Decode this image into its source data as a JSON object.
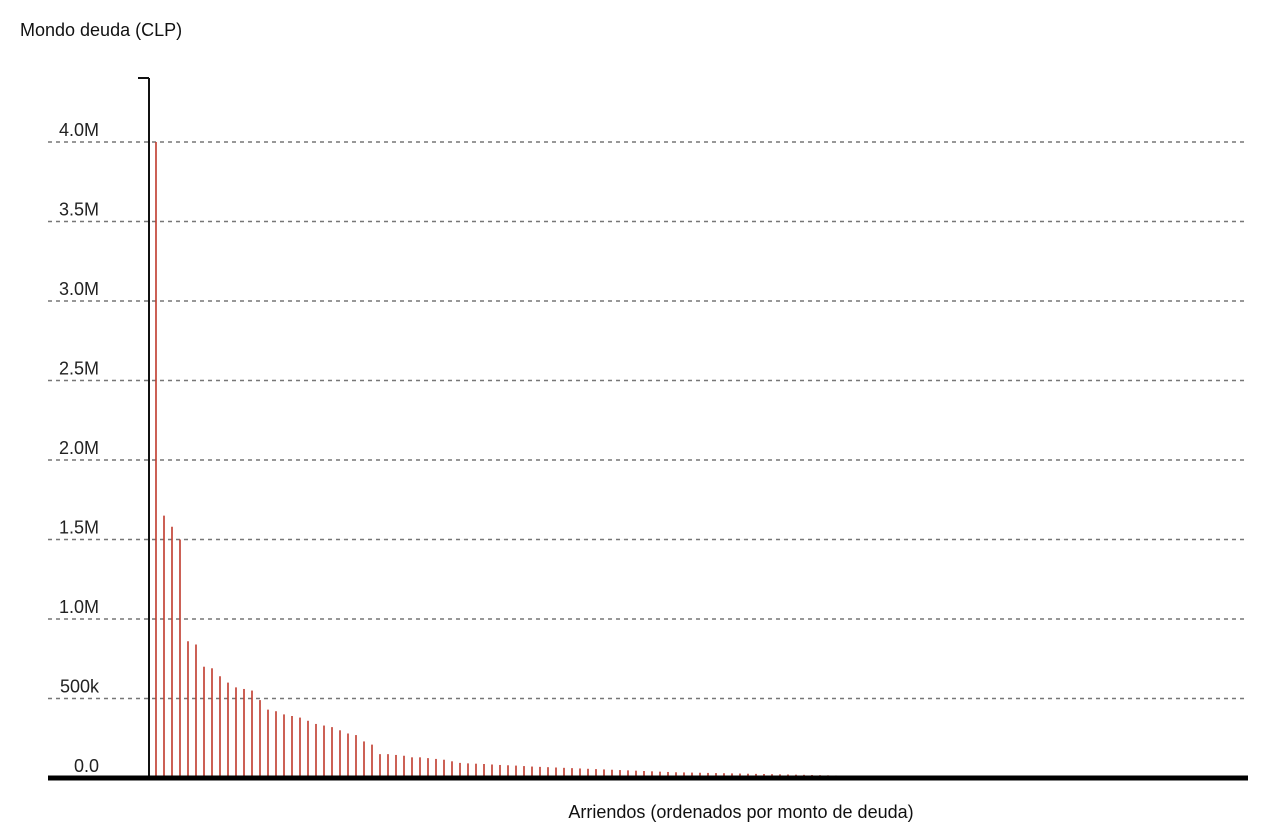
{
  "chart_data": {
    "type": "bar",
    "title": "Mondo deuda (CLP)",
    "xlabel": "Arriendos (ordenados por monto de deuda)",
    "ylabel": "",
    "ylim": [
      0,
      4000000
    ],
    "yticks": [
      {
        "value": 0,
        "label": "0.0"
      },
      {
        "value": 500000,
        "label": "500k"
      },
      {
        "value": 1000000,
        "label": "1.0M"
      },
      {
        "value": 1500000,
        "label": "1.5M"
      },
      {
        "value": 2000000,
        "label": "2.0M"
      },
      {
        "value": 2500000,
        "label": "2.5M"
      },
      {
        "value": 3000000,
        "label": "3.0M"
      },
      {
        "value": 3500000,
        "label": "3.5M"
      },
      {
        "value": 4000000,
        "label": "4.0M"
      }
    ],
    "grid": true,
    "bar_color": "#c0392b",
    "values": [
      4000000,
      1650000,
      1580000,
      1500000,
      860000,
      840000,
      700000,
      690000,
      640000,
      600000,
      570000,
      560000,
      550000,
      490000,
      430000,
      420000,
      400000,
      390000,
      380000,
      360000,
      340000,
      330000,
      320000,
      300000,
      280000,
      270000,
      230000,
      210000,
      150000,
      150000,
      145000,
      140000,
      130000,
      130000,
      125000,
      120000,
      115000,
      105000,
      95000,
      92000,
      90000,
      88000,
      85000,
      82000,
      80000,
      78000,
      75000,
      72000,
      70000,
      68000,
      66000,
      64000,
      62000,
      60000,
      58000,
      56000,
      54000,
      52000,
      50000,
      48000,
      46000,
      44000,
      42000,
      40000,
      38000,
      36000,
      35000,
      34000,
      33000,
      32000,
      31000,
      30000,
      29000,
      28000,
      27000,
      26000,
      25000,
      24000,
      23000,
      22000,
      21000,
      20000,
      19000,
      18000,
      17000,
      16000,
      15500,
      15000,
      14500,
      14000,
      13500,
      13000,
      12500,
      12000,
      11500,
      11000,
      10500,
      10000,
      9500,
      9000,
      8500,
      8000,
      7500,
      7000,
      6500,
      6000,
      5500
    ]
  }
}
